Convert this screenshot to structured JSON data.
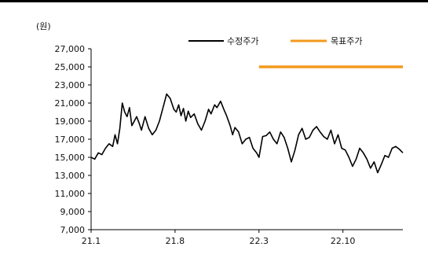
{
  "chart_data": {
    "type": "line",
    "unit_label": "(원)",
    "ylim": [
      7000,
      27000
    ],
    "y_ticks": [
      "27,000",
      "25,000",
      "23,000",
      "21,000",
      "19,000",
      "17,000",
      "15,000",
      "13,000",
      "11,000",
      "9,000",
      "7,000"
    ],
    "y_tick_values": [
      27000,
      25000,
      23000,
      21000,
      19000,
      17000,
      15000,
      13000,
      11000,
      9000,
      7000
    ],
    "x_ticks": [
      "21.1",
      "21.8",
      "22.3",
      "22.10"
    ],
    "x_tick_values": [
      0,
      7,
      14,
      21
    ],
    "xlim": [
      0,
      26
    ],
    "grid": false,
    "legend_position": "top-right",
    "series": [
      {
        "name": "수정주가",
        "color": "#000000",
        "x": [
          0,
          0.3,
          0.6,
          0.9,
          1.2,
          1.5,
          1.8,
          2.0,
          2.2,
          2.4,
          2.6,
          2.8,
          3.0,
          3.2,
          3.4,
          3.6,
          3.8,
          4.0,
          4.2,
          4.5,
          4.8,
          5.1,
          5.4,
          5.7,
          6.0,
          6.3,
          6.6,
          6.9,
          7.1,
          7.3,
          7.5,
          7.7,
          7.9,
          8.1,
          8.3,
          8.6,
          8.9,
          9.2,
          9.5,
          9.8,
          10.0,
          10.3,
          10.5,
          10.8,
          11.1,
          11.3,
          11.6,
          11.8,
          12.0,
          12.3,
          12.6,
          12.9,
          13.2,
          13.5,
          13.8,
          14.0,
          14.3,
          14.6,
          14.9,
          15.2,
          15.5,
          15.8,
          16.1,
          16.4,
          16.7,
          17.0,
          17.3,
          17.6,
          17.9,
          18.2,
          18.5,
          18.8,
          19.1,
          19.4,
          19.7,
          20.0,
          20.3,
          20.6,
          20.9,
          21.2,
          21.5,
          21.8,
          22.1,
          22.4,
          22.7,
          23.0,
          23.3,
          23.6,
          23.9,
          24.2,
          24.5,
          24.8,
          25.1,
          25.4,
          25.7,
          26.0
        ],
        "values": [
          15000,
          14800,
          15500,
          15300,
          16000,
          16500,
          16200,
          17500,
          16500,
          18200,
          21000,
          20000,
          19500,
          20500,
          18500,
          19000,
          19500,
          18800,
          18000,
          19500,
          18200,
          17500,
          18000,
          19000,
          20500,
          22000,
          21500,
          20300,
          20000,
          20800,
          19600,
          20400,
          19000,
          20100,
          19400,
          19800,
          18700,
          18000,
          19000,
          20300,
          19800,
          20800,
          20500,
          21200,
          20200,
          19600,
          18500,
          17500,
          18300,
          17800,
          16500,
          17000,
          17200,
          16000,
          15500,
          15000,
          17300,
          17400,
          17800,
          17000,
          16500,
          17800,
          17200,
          16000,
          14500,
          15800,
          17500,
          18200,
          17000,
          17200,
          18000,
          18400,
          17800,
          17300,
          17000,
          18000,
          16500,
          17500,
          16000,
          15800,
          15000,
          14000,
          14800,
          16000,
          15500,
          14800,
          13800,
          14500,
          13300,
          14200,
          15200,
          15000,
          16000,
          16200,
          15900,
          15500
        ]
      },
      {
        "name": "목표주가",
        "color": "#f39a1e",
        "x": [
          14.0,
          26.0
        ],
        "values": [
          25000,
          25000
        ]
      }
    ]
  }
}
